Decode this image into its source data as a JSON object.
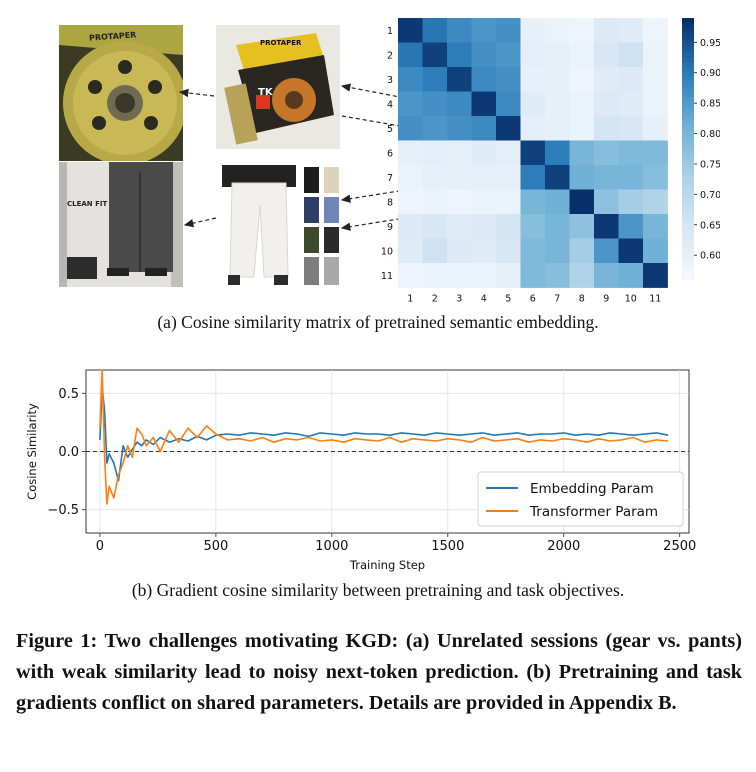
{
  "figure_a": {
    "caption": "(a) Cosine similarity matrix of pretrained semantic embedding.",
    "images": {
      "gear_closeup_brand": "PROTAPER",
      "gear_kit_brand": "PROTAPER",
      "gear_kit_sub": "TK",
      "pants_box_title": "CLEAN FIT"
    },
    "colors": {
      "colormap_low": "#f4f8fd",
      "colormap_high": "#08306b",
      "arrow": "#222222"
    }
  },
  "figure_b": {
    "caption": "(b) Gradient cosine similarity between pretraining and task objectives."
  },
  "figure_caption": "Figure 1: Two challenges motivating KGD: (a) Unrelated sessions (gear vs. pants) with weak similarity lead to noisy next-token prediction. (b) Pretraining and task gradients conflict on shared parameters. Details are provided in Appendix B.",
  "chart_data": [
    {
      "type": "heatmap",
      "x_labels": [
        "1",
        "2",
        "3",
        "4",
        "5",
        "6",
        "7",
        "8",
        "9",
        "10",
        "11"
      ],
      "y_labels": [
        "1",
        "2",
        "3",
        "4",
        "5",
        "6",
        "7",
        "8",
        "9",
        "10",
        "11"
      ],
      "values": [
        [
          0.98,
          0.91,
          0.88,
          0.86,
          0.87,
          0.6,
          0.59,
          0.58,
          0.63,
          0.62,
          0.58
        ],
        [
          0.91,
          0.97,
          0.9,
          0.87,
          0.86,
          0.61,
          0.6,
          0.59,
          0.64,
          0.66,
          0.59
        ],
        [
          0.88,
          0.9,
          0.97,
          0.88,
          0.87,
          0.6,
          0.6,
          0.58,
          0.62,
          0.63,
          0.59
        ],
        [
          0.86,
          0.87,
          0.88,
          0.98,
          0.88,
          0.62,
          0.6,
          0.59,
          0.63,
          0.62,
          0.59
        ],
        [
          0.87,
          0.86,
          0.87,
          0.88,
          0.98,
          0.61,
          0.6,
          0.59,
          0.65,
          0.64,
          0.6
        ],
        [
          0.6,
          0.61,
          0.6,
          0.62,
          0.61,
          0.97,
          0.9,
          0.8,
          0.78,
          0.79,
          0.79
        ],
        [
          0.59,
          0.6,
          0.6,
          0.6,
          0.6,
          0.9,
          0.97,
          0.81,
          0.8,
          0.8,
          0.78
        ],
        [
          0.58,
          0.59,
          0.58,
          0.59,
          0.59,
          0.8,
          0.81,
          0.99,
          0.77,
          0.74,
          0.72
        ],
        [
          0.63,
          0.64,
          0.62,
          0.63,
          0.65,
          0.78,
          0.8,
          0.77,
          0.98,
          0.86,
          0.8
        ],
        [
          0.62,
          0.66,
          0.63,
          0.62,
          0.64,
          0.79,
          0.8,
          0.74,
          0.86,
          0.98,
          0.81
        ],
        [
          0.58,
          0.59,
          0.59,
          0.59,
          0.6,
          0.79,
          0.78,
          0.72,
          0.8,
          0.81,
          0.98
        ]
      ],
      "colorbar": {
        "ticks": [
          0.6,
          0.65,
          0.7,
          0.75,
          0.8,
          0.85,
          0.9,
          0.95
        ],
        "tick_labels": [
          "0.60",
          "0.65",
          "0.70",
          "0.75",
          "0.80",
          "0.85",
          "0.90",
          "0.95"
        ],
        "range": [
          0.56,
          0.99
        ]
      },
      "colormap": "Blues"
    },
    {
      "type": "line",
      "xlabel": "Training Step",
      "ylabel": "Cosine Similarity",
      "xlim": [
        -60,
        2540
      ],
      "ylim": [
        -0.7,
        0.7
      ],
      "xticks": [
        0,
        500,
        1000,
        1500,
        2000,
        2500
      ],
      "xtick_labels": [
        "0",
        "500",
        "1000",
        "1500",
        "2000",
        "2500"
      ],
      "yticks": [
        -0.5,
        0.0,
        0.5
      ],
      "ytick_labels": [
        "−0.5",
        "0.0",
        "0.5"
      ],
      "zero_line": "dashed",
      "legend_placement": "lower-right",
      "series": [
        {
          "name": "Embedding Param",
          "color": "#1f77b4",
          "x": [
            0,
            10,
            20,
            30,
            40,
            60,
            80,
            100,
            120,
            140,
            160,
            180,
            200,
            230,
            260,
            300,
            340,
            380,
            420,
            460,
            500,
            550,
            600,
            650,
            700,
            750,
            800,
            850,
            900,
            950,
            1000,
            1050,
            1100,
            1150,
            1200,
            1250,
            1300,
            1350,
            1400,
            1450,
            1500,
            1550,
            1600,
            1650,
            1700,
            1750,
            1800,
            1850,
            1900,
            1950,
            2000,
            2050,
            2100,
            2150,
            2200,
            2250,
            2300,
            2350,
            2400,
            2450
          ],
          "y": [
            0.1,
            0.55,
            0.35,
            -0.1,
            -0.02,
            -0.1,
            -0.25,
            0.05,
            -0.05,
            0.02,
            0.08,
            0.05,
            0.1,
            0.06,
            0.12,
            0.08,
            0.11,
            0.09,
            0.13,
            0.1,
            0.14,
            0.15,
            0.14,
            0.16,
            0.15,
            0.14,
            0.16,
            0.15,
            0.13,
            0.16,
            0.15,
            0.14,
            0.16,
            0.15,
            0.15,
            0.14,
            0.16,
            0.15,
            0.14,
            0.16,
            0.15,
            0.14,
            0.15,
            0.16,
            0.14,
            0.15,
            0.16,
            0.14,
            0.15,
            0.15,
            0.16,
            0.14,
            0.15,
            0.14,
            0.16,
            0.15,
            0.14,
            0.15,
            0.16,
            0.14
          ]
        },
        {
          "name": "Transformer Param",
          "color": "#ff7f0e",
          "x": [
            0,
            10,
            20,
            30,
            40,
            60,
            80,
            100,
            120,
            140,
            160,
            180,
            200,
            230,
            260,
            300,
            340,
            380,
            420,
            460,
            500,
            550,
            600,
            650,
            700,
            750,
            800,
            850,
            900,
            950,
            1000,
            1050,
            1100,
            1150,
            1200,
            1250,
            1300,
            1350,
            1400,
            1450,
            1500,
            1550,
            1600,
            1650,
            1700,
            1750,
            1800,
            1850,
            1900,
            1950,
            2000,
            2050,
            2100,
            2150,
            2200,
            2250,
            2300,
            2350,
            2400,
            2450
          ],
          "y": [
            0.2,
            0.7,
            -0.05,
            -0.45,
            -0.3,
            -0.4,
            -0.2,
            -0.1,
            0.05,
            -0.05,
            0.2,
            0.15,
            0.05,
            0.12,
            0.0,
            0.18,
            0.08,
            0.2,
            0.12,
            0.22,
            0.15,
            0.1,
            0.11,
            0.09,
            0.12,
            0.08,
            0.11,
            0.1,
            0.12,
            0.09,
            0.1,
            0.08,
            0.11,
            0.1,
            0.09,
            0.12,
            0.08,
            0.11,
            0.1,
            0.09,
            0.11,
            0.1,
            0.08,
            0.12,
            0.09,
            0.1,
            0.11,
            0.08,
            0.1,
            0.09,
            0.11,
            0.1,
            0.08,
            0.11,
            0.09,
            0.1,
            0.12,
            0.08,
            0.1,
            0.09
          ]
        }
      ]
    }
  ]
}
